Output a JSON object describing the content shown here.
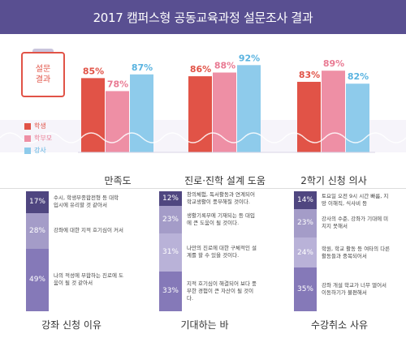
{
  "title": "2017 캠퍼스형 공동교육과정 설문조사 결과",
  "badge": {
    "line1": "설문",
    "line2": "결과"
  },
  "colors": {
    "header": "#594f91",
    "student": "#e15347",
    "parent": "#ee8fa5",
    "teacher": "#8ecbeb",
    "percent_student": "#e15347",
    "percent_parent": "#e97a93",
    "percent_teacher": "#59b3e0"
  },
  "chart_data": [
    {
      "type": "bar",
      "categories": [
        "만족도",
        "진로·진학 설계 도움",
        "2학기 신청 의사"
      ],
      "series": [
        {
          "name": "학생",
          "values": [
            85,
            86,
            83
          ]
        },
        {
          "name": "학부모",
          "values": [
            78,
            88,
            89
          ]
        },
        {
          "name": "강사",
          "values": [
            87,
            92,
            82
          ]
        }
      ],
      "value_suffix": "%",
      "legend": "left"
    },
    {
      "type": "bar",
      "stacked": true,
      "groups": [
        {
          "label": "강좌 신청 이유",
          "segments": [
            {
              "value": 17,
              "label": "17%",
              "text": "수시, 학생부종합전형 등 대학 입시에 유리할 것 같아서",
              "color": "#4f4680"
            },
            {
              "value": 28,
              "label": "28%",
              "text": "강좌에 대한 지적 호기심이 커서",
              "color": "#a49cc8"
            },
            {
              "value": 49,
              "label": "49%",
              "text": "나의 적성에 부합하는 진로에 도움이 될 것 같아서",
              "color": "#8579b8"
            }
          ]
        },
        {
          "label": "기대하는 바",
          "segments": [
            {
              "value": 12,
              "label": "12%",
              "text": "창의체험, 독서활동과 연계되어 학교생활이 풍부해질 것이다.",
              "color": "#4f4680"
            },
            {
              "value": 23,
              "label": "23%",
              "text": "생활기록부에 기재되는 등 대입에 큰 도움이 될 것이다.",
              "color": "#a49cc8"
            },
            {
              "value": 31,
              "label": "31%",
              "text": "나만의 진로에 대한 구체적인 설계를 할 수 있을 것이다.",
              "color": "#b9b2d8"
            },
            {
              "value": 33,
              "label": "33%",
              "text": "지적 호기심이 해결되어 보다 풍부한 경험이 큰 자산이 될 것이다.",
              "color": "#8579b8"
            }
          ]
        },
        {
          "label": "수강취소 사유",
          "segments": [
            {
              "value": 14,
              "label": "14%",
              "text": "토요일 오전 9시 시간 빠름, 지망 이해직, 식사비 등",
              "color": "#4f4680"
            },
            {
              "value": 23,
              "label": "23%",
              "text": "강사의 수준, 강좌가 기대에 미치지 못해서",
              "color": "#a49cc8"
            },
            {
              "value": 24,
              "label": "24%",
              "text": "학원, 학교 활동 등 여타의 다른 활동들과 중복되어서",
              "color": "#b9b2d8"
            },
            {
              "value": 35,
              "label": "35%",
              "text": "강좌 개설 학교가 너무 멀어서 이동하기가 불편해서",
              "color": "#8579b8"
            }
          ]
        }
      ]
    }
  ]
}
